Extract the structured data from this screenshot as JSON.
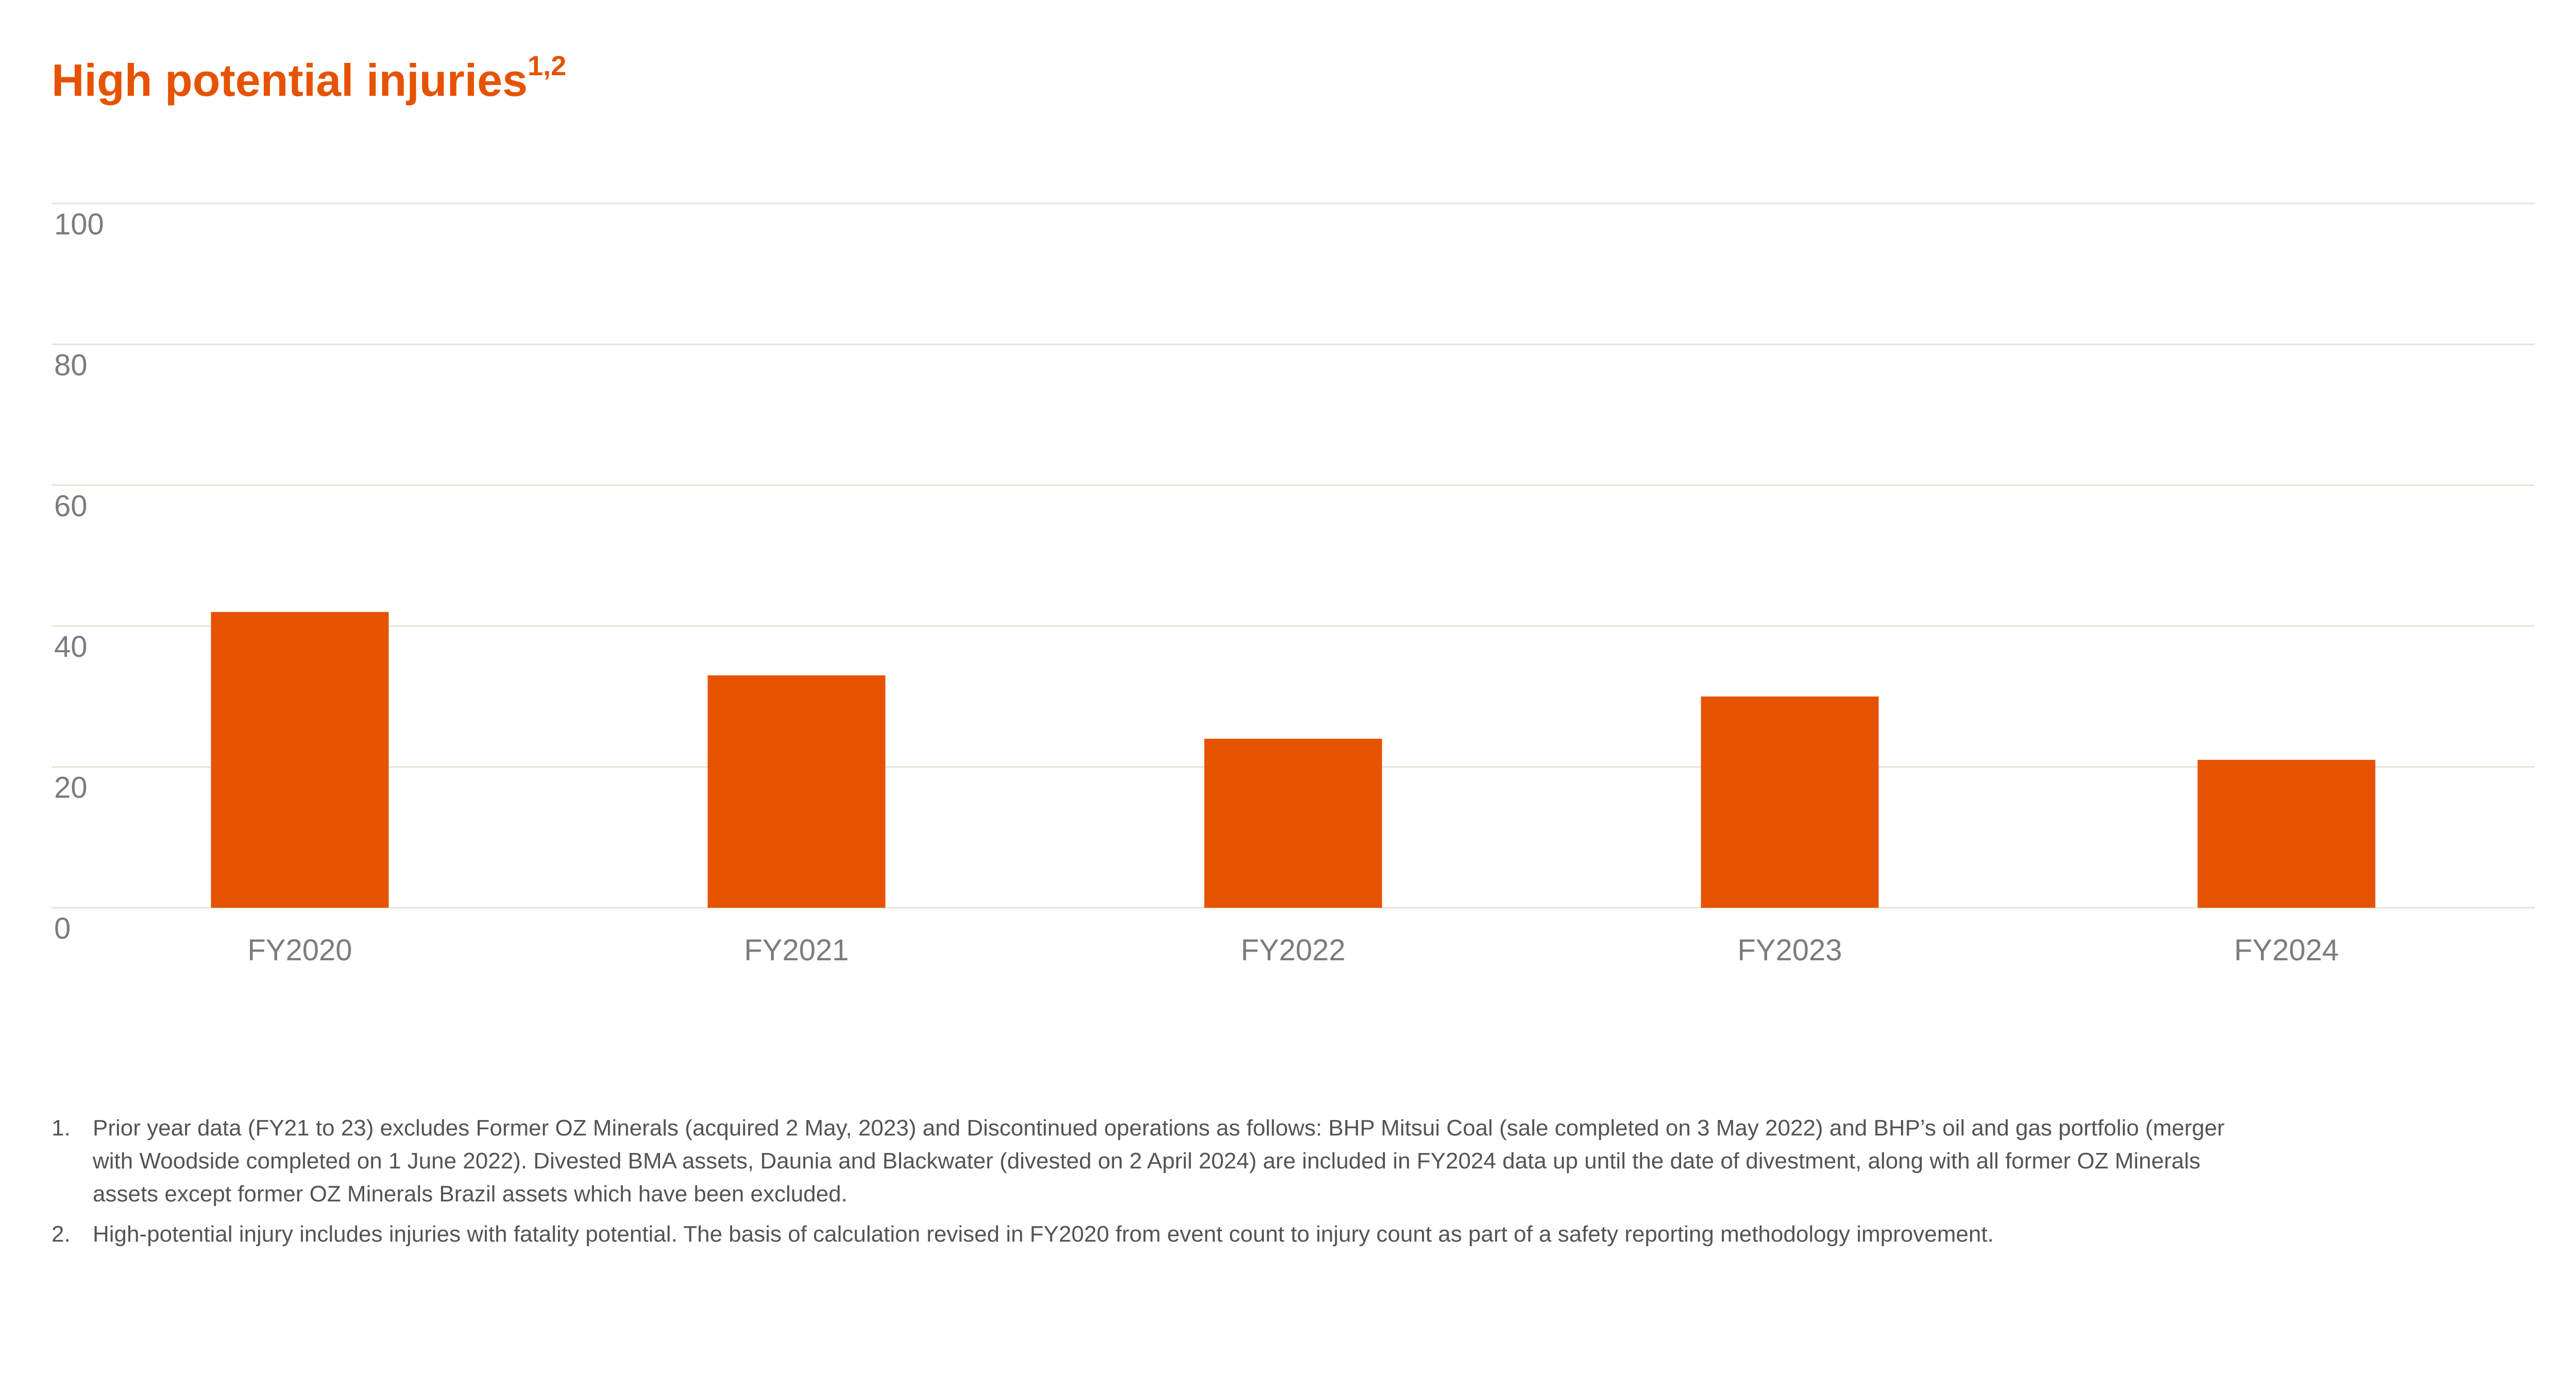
{
  "title": {
    "text": "High potential injuries",
    "sup": "1,2"
  },
  "chart_data": {
    "type": "bar",
    "title": "High potential injuries",
    "categories": [
      "FY2020",
      "FY2021",
      "FY2022",
      "FY2023",
      "FY2024"
    ],
    "values": [
      42,
      33,
      24,
      30,
      21
    ],
    "y_ticks": [
      0,
      20,
      40,
      60,
      80,
      100
    ],
    "ylim": [
      0,
      100
    ],
    "xlabel": "",
    "ylabel": "",
    "grid": true,
    "legend": "none",
    "bar_color": "#e65300"
  },
  "footnotes": [
    {
      "num": "1.",
      "text": "Prior year data (FY21 to 23) excludes Former OZ Minerals (acquired 2 May, 2023) and Discontinued operations as follows: BHP Mitsui Coal (sale completed on 3 May 2022) and BHP’s oil and gas portfolio (merger with Woodside completed on 1 June 2022). Divested BMA assets, Daunia and Blackwater (divested on 2 April 2024) are included in FY2024 data up until the date of divestment, along with all former OZ Minerals assets except former OZ Minerals Brazil assets which have been excluded."
    },
    {
      "num": "2.",
      "text": "High-potential injury includes injuries with fatality potential. The basis of calculation revised in FY2020 from event count to injury count as part of a safety reporting methodology improvement."
    }
  ]
}
